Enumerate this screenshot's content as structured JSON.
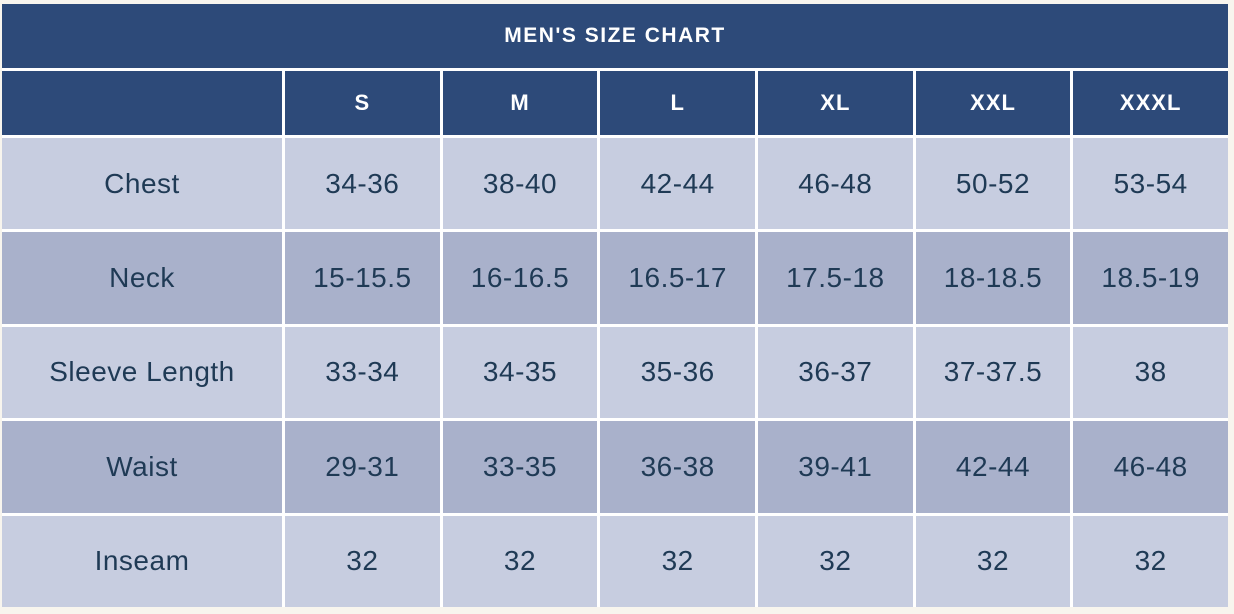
{
  "chart_data": {
    "type": "table",
    "title": "MEN'S SIZE CHART",
    "columns": [
      "",
      "S",
      "M",
      "L",
      "XL",
      "XXL",
      "XXXL"
    ],
    "rows": [
      {
        "label": "Chest",
        "values": [
          "34-36",
          "38-40",
          "42-44",
          "46-48",
          "50-52",
          "53-54"
        ]
      },
      {
        "label": "Neck",
        "values": [
          "15-15.5",
          "16-16.5",
          "16.5-17",
          "17.5-18",
          "18-18.5",
          "18.5-19"
        ]
      },
      {
        "label": "Sleeve Length",
        "values": [
          "33-34",
          "34-35",
          "35-36",
          "36-37",
          "37-37.5",
          "38"
        ]
      },
      {
        "label": "Waist",
        "values": [
          "29-31",
          "33-35",
          "36-38",
          "39-41",
          "42-44",
          "46-48"
        ]
      },
      {
        "label": "Inseam",
        "values": [
          "32",
          "32",
          "32",
          "32",
          "32",
          "32"
        ]
      }
    ],
    "layout": {
      "header_position": "top",
      "row_striping": "alternating",
      "grid": "white separators"
    }
  },
  "colors": {
    "header_bg": "#2d4a79",
    "header_text": "#ffffff",
    "row_light_bg": "#c7cde0",
    "row_dark_bg": "#a9b1cb",
    "cell_text": "#1f3a55",
    "separator": "#ffffff",
    "page_bg": "#f8f5ee"
  }
}
